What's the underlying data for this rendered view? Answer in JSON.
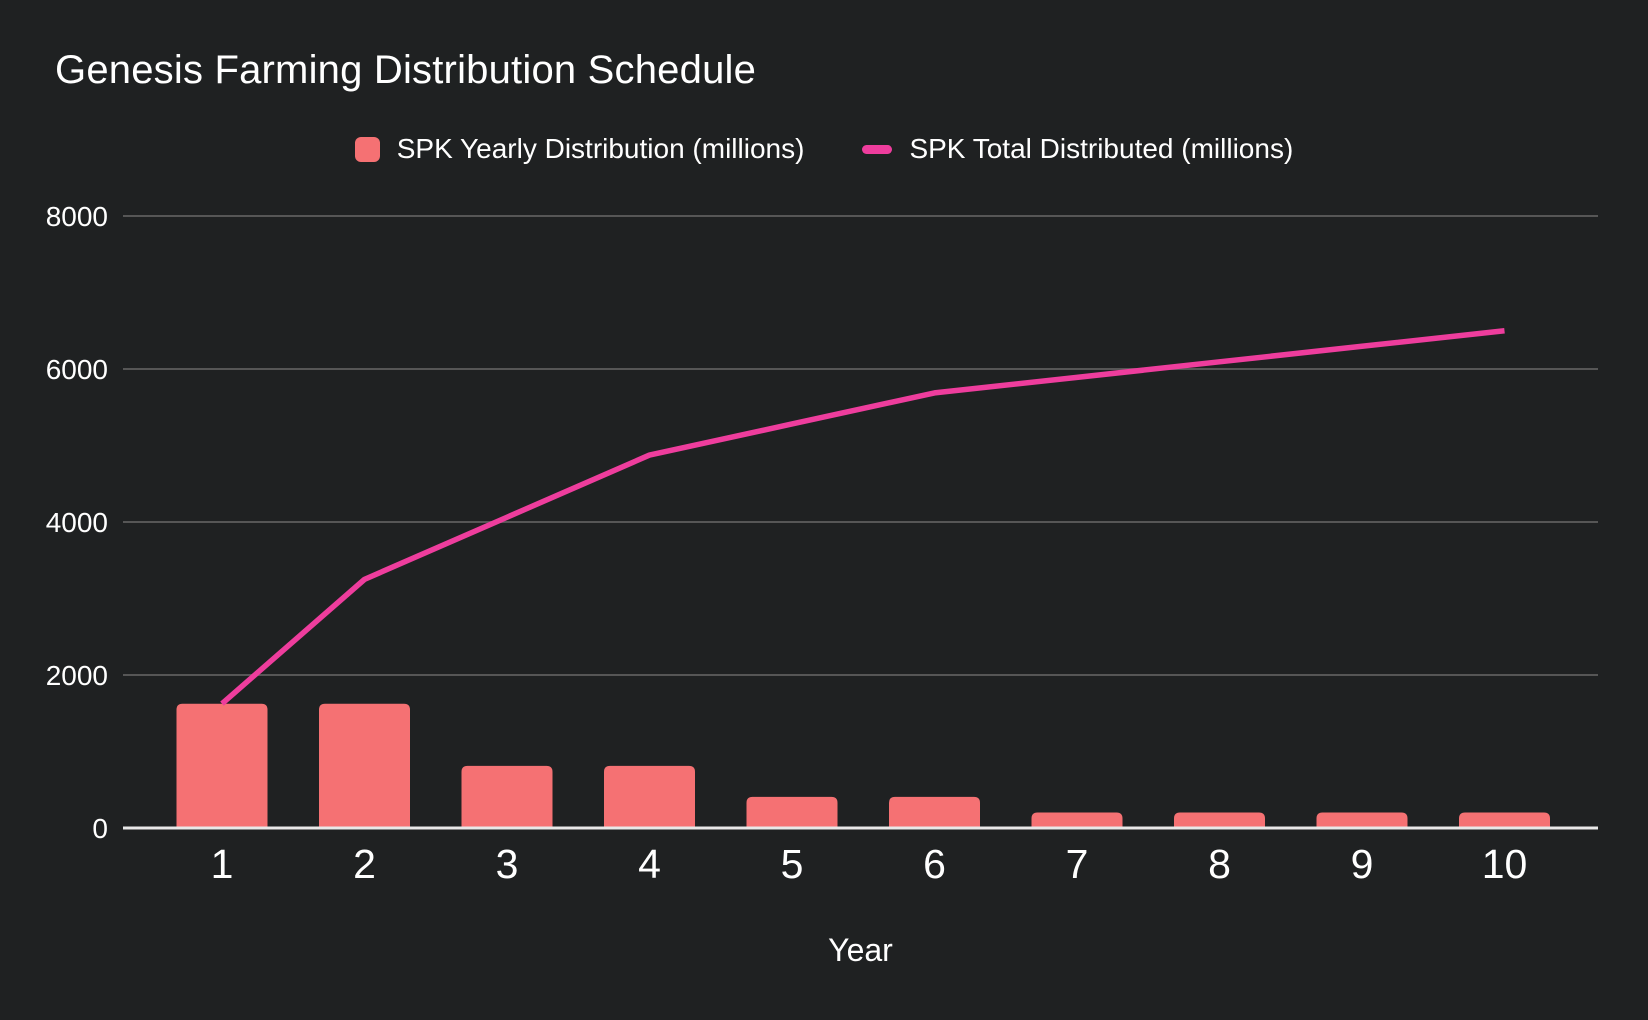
{
  "chart": {
    "title": "Genesis Farming Distribution Schedule",
    "legend": [
      {
        "label": "SPK Yearly Distribution (millions)",
        "color": "#f57173",
        "marker": "square"
      },
      {
        "label": "SPK Total Distributed (millions)",
        "color": "#ee3d9d",
        "marker": "dash"
      }
    ]
  },
  "chart_data": {
    "type": "bar+line combo",
    "categories": [
      1,
      2,
      3,
      4,
      5,
      6,
      7,
      8,
      9,
      10
    ],
    "series": [
      {
        "name": "SPK Yearly Distribution (millions)",
        "type": "bar",
        "color": "#f57173",
        "values": [
          1625,
          1625,
          812.5,
          812.5,
          406.25,
          406.25,
          203.125,
          203.125,
          203.125,
          203.125
        ]
      },
      {
        "name": "SPK Total Distributed (millions)",
        "type": "line",
        "color": "#ee3d9d",
        "values": [
          1625,
          3250,
          4062.5,
          4875,
          5281.25,
          5687.5,
          5890.625,
          6093.75,
          6296.875,
          6500
        ]
      }
    ],
    "title": "Genesis Farming Distribution Schedule",
    "xlabel": "Year",
    "ylabel": "",
    "ylim": [
      0,
      8000
    ],
    "yticks": [
      0,
      2000,
      4000,
      6000,
      8000
    ],
    "grid": true,
    "legend_position": "top",
    "colors": {
      "background": "#1f2122",
      "grid": "#565656",
      "axis_baseline": "#e8e8e8",
      "text": "#ffffff"
    }
  }
}
